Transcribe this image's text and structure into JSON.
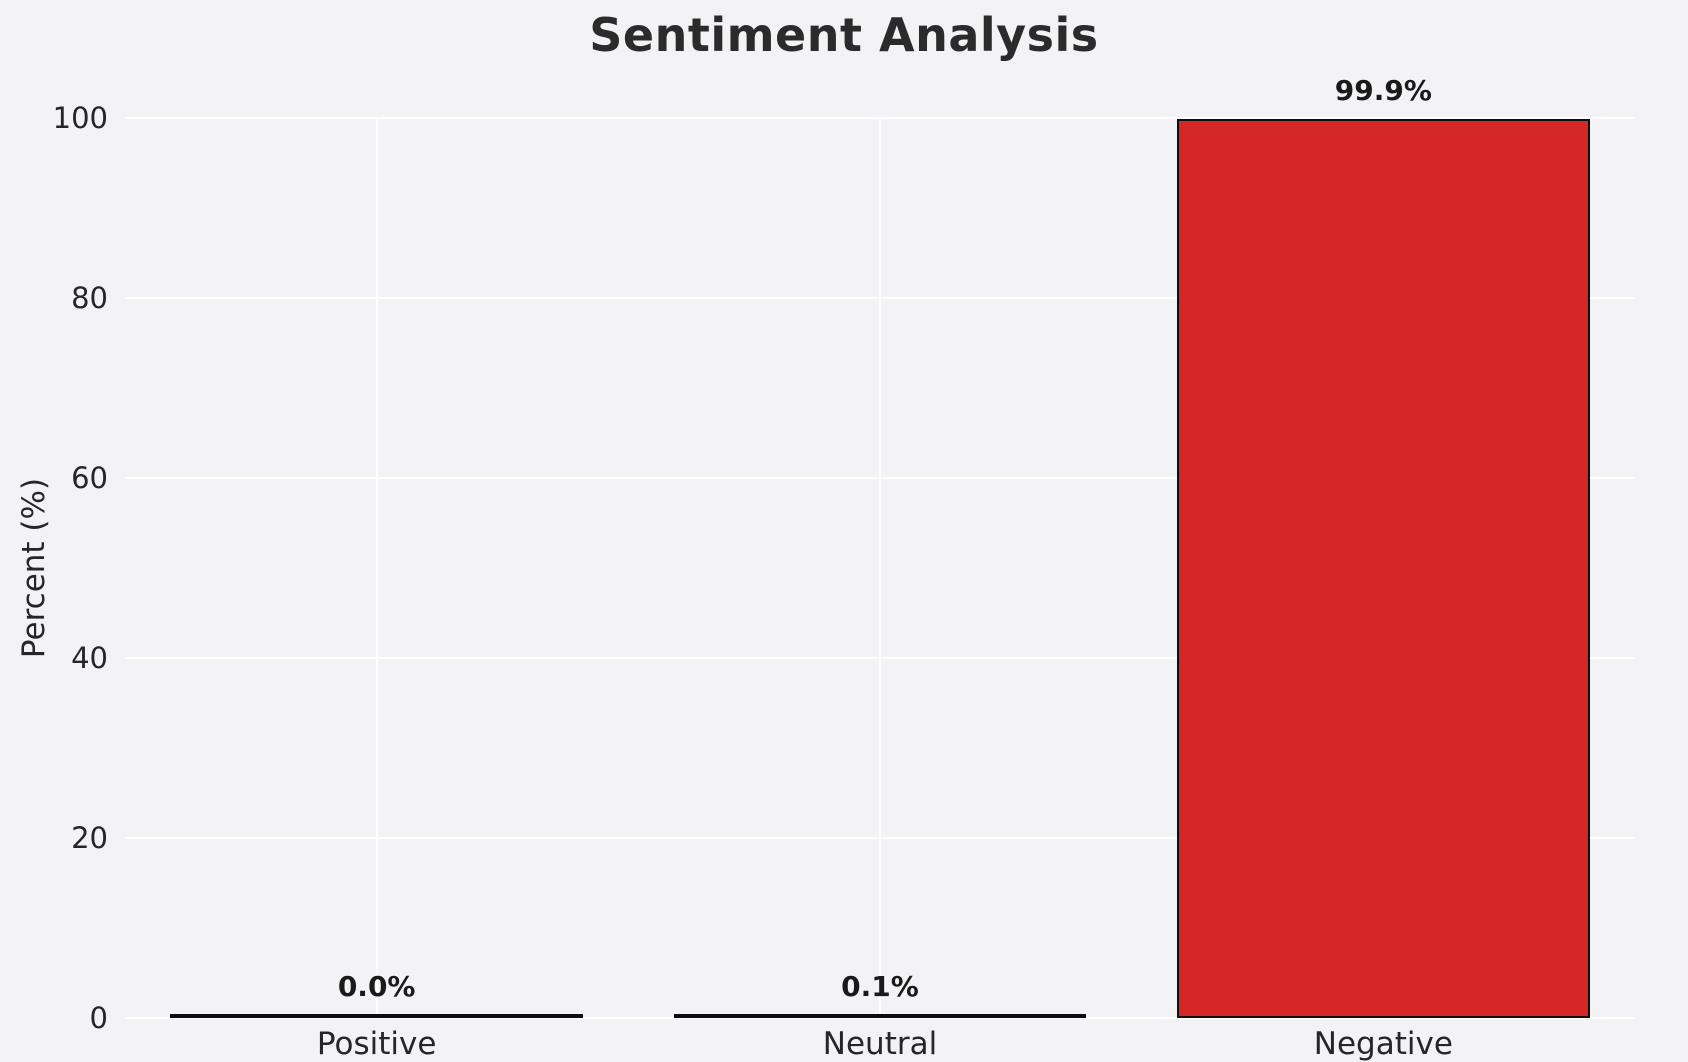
{
  "chart_data": {
    "type": "bar",
    "title": "Sentiment Analysis",
    "xlabel": "",
    "ylabel": "Percent (%)",
    "categories": [
      "Positive",
      "Neutral",
      "Negative"
    ],
    "values": [
      0.0,
      0.1,
      99.9
    ],
    "value_labels": [
      "0.0%",
      "0.1%",
      "99.9%"
    ],
    "ylim": [
      0,
      100
    ],
    "yticks": [
      0,
      20,
      40,
      60,
      80,
      100
    ],
    "grid": true,
    "legend": "none",
    "bar_color": "#d62728",
    "bar_edge_color": "#0d0d0d",
    "background_color": "#f3f3f6",
    "gridline_color": "#ffffff"
  }
}
